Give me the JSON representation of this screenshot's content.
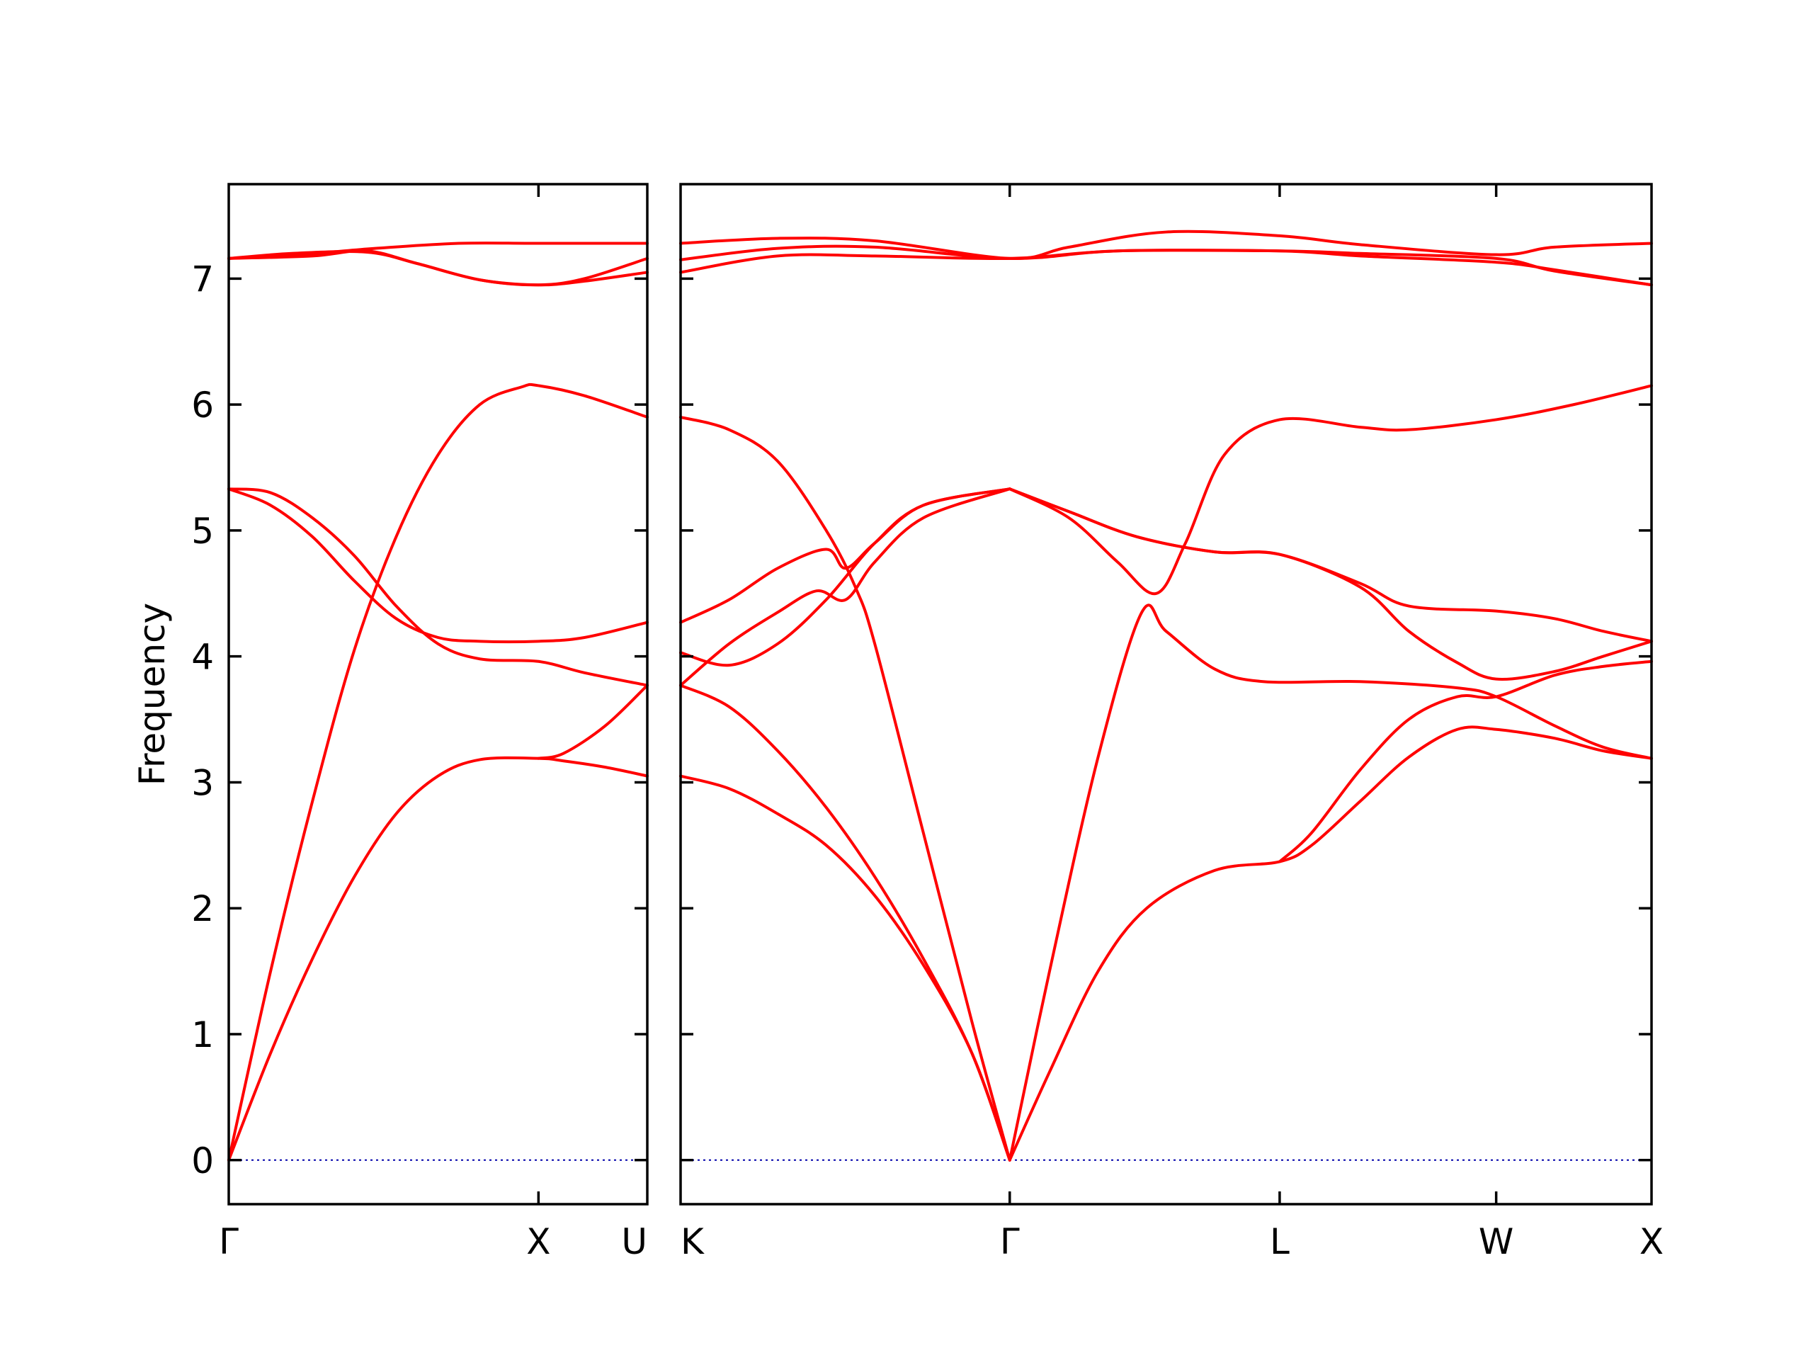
{
  "chart_data": {
    "type": "line",
    "title": "",
    "ylabel": "Frequency",
    "xlabel": "",
    "ylim": [
      -0.35,
      7.75
    ],
    "yticks": [
      0,
      1,
      2,
      3,
      4,
      5,
      6,
      7
    ],
    "grid": false,
    "legend": "none",
    "band_color": "#ff0000",
    "zero_line_color": "#0000aa",
    "panels": [
      {
        "id": "left",
        "path_points": [
          "Γ",
          "X",
          "U"
        ],
        "bands": [
          [
            [
              0,
              0
            ],
            [
              0.1,
              0.85
            ],
            [
              0.2,
              1.6
            ],
            [
              0.3,
              2.25
            ],
            [
              0.4,
              2.75
            ],
            [
              0.5,
              3.05
            ],
            [
              0.6,
              3.18
            ],
            [
              0.74,
              3.19
            ],
            [
              0.8,
              3.17
            ],
            [
              0.9,
              3.12
            ],
            [
              1,
              3.05
            ]
          ],
          [
            [
              0,
              0
            ],
            [
              0.1,
              1.5
            ],
            [
              0.2,
              2.85
            ],
            [
              0.3,
              4.05
            ],
            [
              0.4,
              4.95
            ],
            [
              0.5,
              5.6
            ],
            [
              0.6,
              6.0
            ],
            [
              0.7,
              6.14
            ],
            [
              0.74,
              6.15
            ],
            [
              0.85,
              6.07
            ],
            [
              1,
              5.9
            ]
          ],
          [
            [
              0,
              5.33
            ],
            [
              0.1,
              5.2
            ],
            [
              0.2,
              4.95
            ],
            [
              0.3,
              4.6
            ],
            [
              0.4,
              4.3
            ],
            [
              0.5,
              4.15
            ],
            [
              0.6,
              4.12
            ],
            [
              0.74,
              4.12
            ],
            [
              0.85,
              4.15
            ],
            [
              1,
              4.27
            ]
          ],
          [
            [
              0,
              5.33
            ],
            [
              0.1,
              5.3
            ],
            [
              0.2,
              5.1
            ],
            [
              0.3,
              4.8
            ],
            [
              0.4,
              4.4
            ],
            [
              0.5,
              4.1
            ],
            [
              0.6,
              3.98
            ],
            [
              0.74,
              3.96
            ],
            [
              0.85,
              3.87
            ],
            [
              1,
              3.77
            ]
          ],
          [
            [
              0,
              7.16
            ],
            [
              0.2,
              7.2
            ],
            [
              0.35,
              7.24
            ],
            [
              0.55,
              7.28
            ],
            [
              0.74,
              7.28
            ],
            [
              1,
              7.28
            ]
          ],
          [
            [
              0,
              7.16
            ],
            [
              0.15,
              7.2
            ],
            [
              0.33,
              7.21
            ],
            [
              0.45,
              7.12
            ],
            [
              0.6,
              6.99
            ],
            [
              0.74,
              6.95
            ],
            [
              0.85,
              7.0
            ],
            [
              1,
              7.16
            ]
          ],
          [
            [
              0,
              7.16
            ],
            [
              0.2,
              7.18
            ],
            [
              0.33,
              7.22
            ],
            [
              0.45,
              7.12
            ],
            [
              0.6,
              6.99
            ],
            [
              0.74,
              6.95
            ],
            [
              0.85,
              6.98
            ],
            [
              1,
              7.05
            ]
          ],
          [
            [
              0.74,
              3.19
            ],
            [
              0.8,
              3.23
            ],
            [
              0.9,
              3.45
            ],
            [
              1,
              3.77
            ]
          ]
        ]
      },
      {
        "id": "right",
        "path_points": [
          "K",
          "Γ",
          "L",
          "W",
          "X"
        ],
        "bands": [
          [
            [
              0,
              3.05
            ],
            [
              0.05,
              2.95
            ],
            [
              0.1,
              2.75
            ],
            [
              0.15,
              2.5
            ],
            [
              0.2,
              2.1
            ],
            [
              0.25,
              1.55
            ],
            [
              0.3,
              0.85
            ],
            [
              0.339,
              0
            ]
          ],
          [
            [
              0,
              3.77
            ],
            [
              0.05,
              3.6
            ],
            [
              0.1,
              3.25
            ],
            [
              0.15,
              2.8
            ],
            [
              0.2,
              2.25
            ],
            [
              0.25,
              1.6
            ],
            [
              0.3,
              0.85
            ],
            [
              0.339,
              0
            ]
          ],
          [
            [
              0,
              5.9
            ],
            [
              0.05,
              5.8
            ],
            [
              0.1,
              5.55
            ],
            [
              0.15,
              5.0
            ],
            [
              0.18,
              4.55
            ],
            [
              0.2,
              4.1
            ],
            [
              0.25,
              2.6
            ],
            [
              0.3,
              1.1
            ],
            [
              0.339,
              0
            ]
          ],
          [
            [
              0,
              4.03
            ],
            [
              0.05,
              3.93
            ],
            [
              0.1,
              4.1
            ],
            [
              0.15,
              4.45
            ],
            [
              0.2,
              4.9
            ],
            [
              0.25,
              5.2
            ],
            [
              0.339,
              5.33
            ]
          ],
          [
            [
              0,
              3.77
            ],
            [
              0.05,
              4.1
            ],
            [
              0.1,
              4.35
            ],
            [
              0.14,
              4.52
            ],
            [
              0.17,
              4.45
            ],
            [
              0.2,
              4.75
            ],
            [
              0.25,
              5.1
            ],
            [
              0.339,
              5.33
            ]
          ],
          [
            [
              0,
              4.27
            ],
            [
              0.05,
              4.45
            ],
            [
              0.1,
              4.7
            ],
            [
              0.15,
              4.85
            ],
            [
              0.17,
              4.7
            ],
            [
              0.2,
              4.9
            ],
            [
              0.25,
              5.2
            ],
            [
              0.339,
              5.33
            ]
          ],
          [
            [
              0.339,
              0
            ],
            [
              0.38,
              1.5
            ],
            [
              0.43,
              3.2
            ],
            [
              0.475,
              4.35
            ],
            [
              0.5,
              4.2
            ],
            [
              0.55,
              3.9
            ],
            [
              0.6,
              3.8
            ],
            [
              0.7,
              3.8
            ],
            [
              0.8,
              3.75
            ],
            [
              0.84,
              3.68
            ],
            [
              0.9,
              3.45
            ],
            [
              0.95,
              3.28
            ],
            [
              1,
              3.19
            ]
          ],
          [
            [
              0.339,
              0
            ],
            [
              0.38,
              0.7
            ],
            [
              0.43,
              1.5
            ],
            [
              0.48,
              2.0
            ],
            [
              0.55,
              2.3
            ],
            [
              0.617,
              2.37
            ],
            [
              0.65,
              2.5
            ],
            [
              0.7,
              2.85
            ],
            [
              0.75,
              3.2
            ],
            [
              0.8,
              3.42
            ],
            [
              0.84,
              3.42
            ],
            [
              0.9,
              3.35
            ],
            [
              0.95,
              3.25
            ],
            [
              1,
              3.19
            ]
          ],
          [
            [
              0.617,
              2.37
            ],
            [
              0.65,
              2.6
            ],
            [
              0.7,
              3.1
            ],
            [
              0.75,
              3.5
            ],
            [
              0.8,
              3.68
            ],
            [
              0.84,
              3.68
            ],
            [
              0.9,
              3.85
            ],
            [
              0.95,
              3.92
            ],
            [
              1,
              3.96
            ]
          ],
          [
            [
              0.339,
              5.33
            ],
            [
              0.4,
              5.1
            ],
            [
              0.45,
              4.75
            ],
            [
              0.49,
              4.5
            ],
            [
              0.52,
              4.9
            ],
            [
              0.56,
              5.6
            ],
            [
              0.617,
              5.88
            ],
            [
              0.7,
              5.82
            ],
            [
              0.75,
              5.8
            ],
            [
              0.84,
              5.88
            ],
            [
              0.92,
              6.0
            ],
            [
              1,
              6.15
            ]
          ],
          [
            [
              0.339,
              5.33
            ],
            [
              0.4,
              5.15
            ],
            [
              0.47,
              4.95
            ],
            [
              0.55,
              4.83
            ],
            [
              0.617,
              4.81
            ],
            [
              0.7,
              4.55
            ],
            [
              0.75,
              4.2
            ],
            [
              0.8,
              3.95
            ],
            [
              0.84,
              3.82
            ],
            [
              0.9,
              3.88
            ],
            [
              0.95,
              4.0
            ],
            [
              1,
              4.12
            ]
          ],
          [
            [
              0.339,
              5.33
            ],
            [
              0.4,
              5.15
            ],
            [
              0.47,
              4.95
            ],
            [
              0.55,
              4.83
            ],
            [
              0.617,
              4.81
            ],
            [
              0.7,
              4.58
            ],
            [
              0.75,
              4.4
            ],
            [
              0.84,
              4.36
            ],
            [
              0.9,
              4.3
            ],
            [
              0.95,
              4.2
            ],
            [
              1,
              4.12
            ]
          ],
          [
            [
              0,
              7.05
            ],
            [
              0.1,
              7.18
            ],
            [
              0.2,
              7.18
            ],
            [
              0.339,
              7.16
            ],
            [
              0.45,
              7.22
            ],
            [
              0.617,
              7.22
            ],
            [
              0.7,
              7.18
            ],
            [
              0.84,
              7.13
            ],
            [
              0.9,
              7.07
            ],
            [
              1,
              6.95
            ]
          ],
          [
            [
              0,
              7.15
            ],
            [
              0.1,
              7.24
            ],
            [
              0.2,
              7.25
            ],
            [
              0.339,
              7.16
            ],
            [
              0.45,
              7.22
            ],
            [
              0.617,
              7.22
            ],
            [
              0.7,
              7.2
            ],
            [
              0.84,
              7.16
            ],
            [
              0.9,
              7.06
            ],
            [
              1,
              6.95
            ]
          ],
          [
            [
              0,
              7.28
            ],
            [
              0.1,
              7.32
            ],
            [
              0.2,
              7.3
            ],
            [
              0.339,
              7.16
            ],
            [
              0.4,
              7.25
            ],
            [
              0.5,
              7.37
            ],
            [
              0.617,
              7.34
            ],
            [
              0.7,
              7.27
            ],
            [
              0.84,
              7.19
            ],
            [
              0.9,
              7.25
            ],
            [
              1,
              7.28
            ]
          ]
        ]
      }
    ]
  }
}
